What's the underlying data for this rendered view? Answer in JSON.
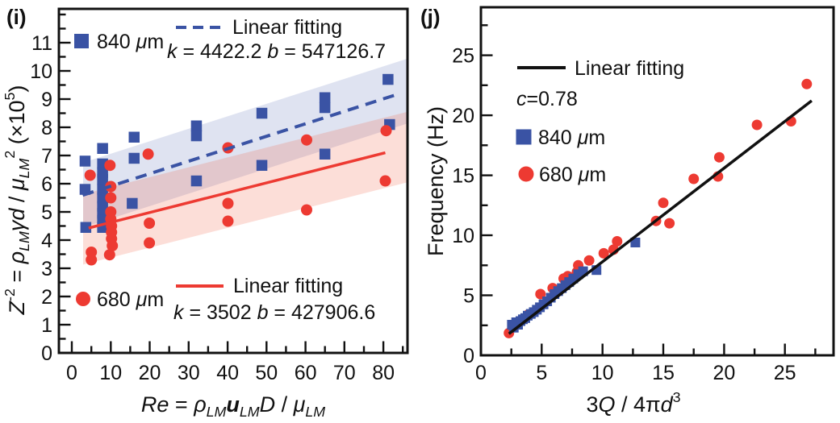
{
  "figure": {
    "background": "#ffffff"
  },
  "chart_data": [
    {
      "panel_label": "(i)",
      "type": "scatter",
      "xlim": [
        -3.32,
        86.2
      ],
      "ylim": [
        0,
        12.2
      ],
      "xlabel_tokens": [
        {
          "t": "Re",
          "i": 1
        },
        {
          "t": " = "
        },
        {
          "t": "ρ",
          "i": 1
        },
        {
          "t": "LM",
          "sub": 1,
          "i": 1
        },
        {
          "t": "u",
          "i": 1,
          "b": 1
        },
        {
          "t": "LM",
          "sub": 1,
          "i": 1
        },
        {
          "t": "D",
          "i": 1
        },
        {
          "t": " / "
        },
        {
          "t": "μ",
          "i": 1
        },
        {
          "t": "LM",
          "sub": 1,
          "i": 1
        }
      ],
      "ylabel_tokens": [
        {
          "t": "Z",
          "i": 1
        },
        {
          "t": "-2",
          "sup": 1
        },
        {
          "t": " = "
        },
        {
          "t": "ρ",
          "i": 1
        },
        {
          "t": "LM",
          "sub": 1,
          "i": 1
        },
        {
          "t": "γd",
          "i": 1
        },
        {
          "t": " / "
        },
        {
          "t": "μ",
          "i": 1
        },
        {
          "t": "LM",
          "sub": 1,
          "i": 1
        },
        {
          "t": "2",
          "sup": 1
        },
        {
          "t": " (×10"
        },
        {
          "t": "5",
          "sup": 1
        },
        {
          "t": ")"
        }
      ],
      "ticks": {
        "x": {
          "major": [
            0,
            10,
            20,
            30,
            40,
            50,
            60,
            70,
            80
          ],
          "minor_step": 5,
          "minor_range": [
            5,
            85
          ]
        },
        "y": {
          "major": [
            0,
            1,
            2,
            3,
            4,
            5,
            6,
            7,
            8,
            9,
            10,
            11
          ],
          "minor_step": 0.5,
          "minor_range": [
            0.5,
            12
          ]
        }
      },
      "series": [
        {
          "name": "840 μm",
          "marker": "square",
          "color": "#3A53A4",
          "points": [
            [
              3.4,
              6.8
            ],
            [
              3.4,
              5.8
            ],
            [
              3.6,
              4.45
            ],
            [
              7.9,
              7.25
            ],
            [
              7.9,
              6.7
            ],
            [
              7.9,
              6.4
            ],
            [
              7.9,
              6.15
            ],
            [
              7.9,
              5.8
            ],
            [
              7.9,
              5.5
            ],
            [
              7.9,
              5.2
            ],
            [
              7.9,
              4.95
            ],
            [
              7.9,
              4.7
            ],
            [
              7.9,
              4.45
            ],
            [
              16,
              7.65
            ],
            [
              16,
              6.9
            ],
            [
              15.5,
              5.3
            ],
            [
              32,
              8.05
            ],
            [
              32,
              7.7
            ],
            [
              32,
              6.1
            ],
            [
              48.8,
              8.5
            ],
            [
              48.8,
              6.65
            ],
            [
              65,
              9.05
            ],
            [
              65,
              8.7
            ],
            [
              65,
              7.05
            ],
            [
              81.2,
              9.7
            ],
            [
              81.6,
              8.1
            ]
          ]
        },
        {
          "name": "680 μm",
          "marker": "circle",
          "color": "#ED3A32",
          "points": [
            [
              4.7,
              6.3
            ],
            [
              5.0,
              3.57
            ],
            [
              5.0,
              3.3
            ],
            [
              9.8,
              6.65
            ],
            [
              10,
              5.9
            ],
            [
              10,
              5.5
            ],
            [
              10,
              5.0
            ],
            [
              10,
              4.75
            ],
            [
              10.2,
              4.5
            ],
            [
              10.2,
              4.28
            ],
            [
              10.2,
              4.05
            ],
            [
              10.4,
              3.8
            ],
            [
              9.7,
              3.48
            ],
            [
              19.6,
              7.05
            ],
            [
              19.9,
              4.6
            ],
            [
              19.9,
              3.9
            ],
            [
              40.1,
              7.27
            ],
            [
              40.1,
              5.3
            ],
            [
              40.1,
              4.67
            ],
            [
              60.3,
              7.55
            ],
            [
              60.3,
              5.07
            ],
            [
              80.7,
              7.88
            ],
            [
              80.5,
              6.1
            ]
          ]
        }
      ],
      "fits": [
        {
          "name": "Linear fitting",
          "style": "dashed",
          "color": "#3A53A4",
          "k": 4422.2,
          "b": 547126.7,
          "divisor": 100000,
          "line_x": [
            2.8,
            84
          ],
          "band_halfwidth": 1.15,
          "band_x": [
            2.9,
            86.2
          ],
          "band_color": "rgba(64,88,172,0.17)"
        },
        {
          "name": "Linear fitting",
          "style": "solid",
          "color": "#ED3A32",
          "k": 3502,
          "b": 427906.6,
          "divisor": 100000,
          "line_x": [
            4.3,
            80.5
          ],
          "band_halfwidth": 1.25,
          "band_x": [
            2.9,
            86.2
          ],
          "band_color": "rgba(238,90,60,0.20)"
        }
      ],
      "legend": [
        {
          "marker": "square",
          "color": "#3A53A4",
          "tokens": [
            {
              "t": "840 "
            },
            {
              "t": "μ",
              "i": 1
            },
            {
              "t": "m"
            }
          ]
        },
        {
          "marker": "line-dashed",
          "color": "#3A53A4",
          "tokens": [
            {
              "t": "Linear fitting"
            }
          ]
        },
        {
          "marker": "none",
          "tokens": [
            {
              "t": "k",
              "i": 1
            },
            {
              "t": " = 4422.2 "
            },
            {
              "t": "b",
              "i": 1
            },
            {
              "t": " = 547126.7"
            }
          ]
        },
        {
          "marker": "circle",
          "color": "#ED3A32",
          "tokens": [
            {
              "t": "680 "
            },
            {
              "t": "μ",
              "i": 1
            },
            {
              "t": "m"
            }
          ]
        },
        {
          "marker": "line-solid",
          "color": "#ED3A32",
          "tokens": [
            {
              "t": "Linear fitting"
            }
          ]
        },
        {
          "marker": "none",
          "tokens": [
            {
              "t": "k",
              "i": 1
            },
            {
              "t": " = 3502    "
            },
            {
              "t": "b",
              "i": 1
            },
            {
              "t": " = 427906.6"
            }
          ]
        }
      ]
    },
    {
      "panel_label": "(j)",
      "type": "scatter",
      "xlim": [
        0,
        29
      ],
      "ylim": [
        0,
        29
      ],
      "xlabel_tokens": [
        {
          "t": "3"
        },
        {
          "t": "Q",
          "i": 1
        },
        {
          "t": " / 4π"
        },
        {
          "t": "d",
          "i": 1
        },
        {
          "t": "3",
          "sup": 1
        }
      ],
      "ylabel_tokens": [
        {
          "t": "Frequency (Hz)"
        }
      ],
      "ticks": {
        "x": {
          "major": [
            0,
            5,
            10,
            15,
            20,
            25
          ],
          "minor_step": 2.5,
          "minor_range": [
            2.5,
            27.5
          ]
        },
        "y": {
          "major": [
            0,
            5,
            10,
            15,
            20,
            25
          ],
          "minor_step": 2.5,
          "minor_range": [
            2.5,
            27.5
          ]
        }
      },
      "series": [
        {
          "name": "680 μm",
          "marker": "circle",
          "color": "#ED3A32",
          "points": [
            [
              2.3,
              1.85
            ],
            [
              3.9,
              3.4
            ],
            [
              4.9,
              5.1
            ],
            [
              5.9,
              5.6
            ],
            [
              6.8,
              6.4
            ],
            [
              7.15,
              6.6
            ],
            [
              7.9,
              6.95
            ],
            [
              8.0,
              7.5
            ],
            [
              8.9,
              7.9
            ],
            [
              10.1,
              8.5
            ],
            [
              10.9,
              8.8
            ],
            [
              11.2,
              9.5
            ],
            [
              14.4,
              11.2
            ],
            [
              15.5,
              11.0
            ],
            [
              15.0,
              12.7
            ],
            [
              17.5,
              14.7
            ],
            [
              19.5,
              14.9
            ],
            [
              19.6,
              16.5
            ],
            [
              22.7,
              19.2
            ],
            [
              25.5,
              19.5
            ],
            [
              26.8,
              22.6
            ]
          ]
        },
        {
          "name": "840 μm",
          "marker": "square",
          "color": "#3A53A4",
          "points": [
            [
              2.55,
              2.55
            ],
            [
              2.7,
              2.3
            ],
            [
              2.9,
              2.75
            ],
            [
              3.05,
              2.55
            ],
            [
              3.25,
              2.85
            ],
            [
              3.45,
              3.0
            ],
            [
              3.65,
              3.1
            ],
            [
              3.85,
              3.3
            ],
            [
              4.1,
              3.45
            ],
            [
              4.35,
              3.6
            ],
            [
              4.6,
              3.8
            ],
            [
              4.85,
              4.0
            ],
            [
              5.15,
              4.25
            ],
            [
              5.45,
              4.5
            ],
            [
              5.75,
              4.8
            ],
            [
              6.05,
              5.1
            ],
            [
              6.35,
              5.35
            ],
            [
              6.65,
              5.6
            ],
            [
              6.95,
              5.85
            ],
            [
              7.25,
              6.1
            ],
            [
              7.6,
              6.4
            ],
            [
              8.0,
              6.75
            ],
            [
              8.4,
              7.0
            ],
            [
              9.5,
              7.1
            ],
            [
              12.7,
              9.4
            ]
          ]
        }
      ],
      "fits": [
        {
          "name": "Linear fitting",
          "style": "solid",
          "color": "#111111",
          "c": 0.78,
          "line_x": [
            2.3,
            27.2
          ]
        }
      ],
      "legend": [
        {
          "marker": "line-solid",
          "color": "#111111",
          "tokens": [
            {
              "t": "Linear fitting"
            }
          ]
        },
        {
          "marker": "none",
          "tokens": [
            {
              "t": "c",
              "i": 1
            },
            {
              "t": "=0.78"
            }
          ]
        },
        {
          "marker": "square",
          "color": "#3A53A4",
          "tokens": [
            {
              "t": "840 "
            },
            {
              "t": "μ",
              "i": 1
            },
            {
              "t": "m"
            }
          ]
        },
        {
          "marker": "circle",
          "color": "#ED3A32",
          "tokens": [
            {
              "t": "680 "
            },
            {
              "t": "μ",
              "i": 1
            },
            {
              "t": "m"
            }
          ]
        }
      ]
    }
  ]
}
